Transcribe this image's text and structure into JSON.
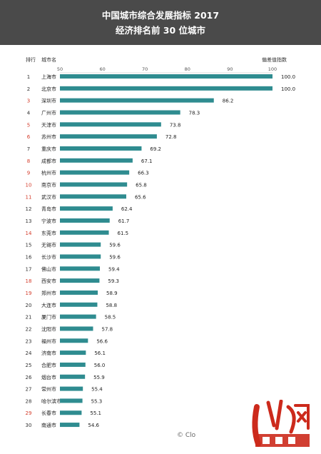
{
  "header": {
    "title_line1": "中国城市综合发展指标 2017",
    "title_line2": "经济排名前 30 位城市"
  },
  "columns": {
    "rank": "排行",
    "city": "城市名",
    "index": "偏差值指数"
  },
  "footer": {
    "copyright": "© Clo"
  },
  "colors": {
    "bar": "#2f8c90",
    "header_bg": "#4a4a4a",
    "rank_red": "#d43b2a",
    "rank_black": "#333333"
  },
  "chart_data": {
    "type": "bar",
    "orientation": "horizontal",
    "title": "中国城市综合发展指标 2017 经济排名前 30 位城市",
    "xlabel": "偏差值指数",
    "ylabel": "城市名",
    "xlim": [
      50,
      100
    ],
    "xticks": [
      50,
      60,
      70,
      80,
      90,
      100
    ],
    "grid": false,
    "ranks": [
      1,
      2,
      3,
      4,
      5,
      6,
      7,
      8,
      9,
      10,
      11,
      12,
      13,
      14,
      15,
      16,
      17,
      18,
      19,
      20,
      21,
      22,
      23,
      24,
      25,
      26,
      27,
      28,
      29,
      30
    ],
    "rank_colors": [
      "black",
      "black",
      "red",
      "black",
      "red",
      "red",
      "black",
      "red",
      "red",
      "red",
      "red",
      "black",
      "black",
      "red",
      "black",
      "black",
      "black",
      "red",
      "red",
      "black",
      "black",
      "black",
      "black",
      "black",
      "black",
      "black",
      "black",
      "black",
      "red",
      "black"
    ],
    "categories": [
      "上海市",
      "北京市",
      "深圳市",
      "广州市",
      "天津市",
      "苏州市",
      "重庆市",
      "成都市",
      "杭州市",
      "南京市",
      "武汉市",
      "青岛市",
      "宁波市",
      "东莞市",
      "无锡市",
      "长沙市",
      "佛山市",
      "西安市",
      "郑州市",
      "大连市",
      "厦门市",
      "沈阳市",
      "福州市",
      "济南市",
      "合肥市",
      "烟台市",
      "常州市",
      "哈尔滨市",
      "长春市",
      "南通市"
    ],
    "values": [
      100.0,
      100.0,
      86.2,
      78.3,
      73.8,
      72.8,
      69.2,
      67.1,
      66.3,
      65.8,
      65.6,
      62.4,
      61.7,
      61.5,
      59.6,
      59.6,
      59.4,
      59.3,
      58.9,
      58.8,
      58.5,
      57.8,
      56.6,
      56.1,
      56.0,
      55.9,
      55.4,
      55.3,
      55.1,
      54.6
    ],
    "value_labels": [
      "100.0",
      "100.0",
      "86.2",
      "78.3",
      "73.8",
      "72.8",
      "69.2",
      "67.1",
      "66.3",
      "65.8",
      "65.6",
      "62.4",
      "61.7",
      "61.5",
      "59.6",
      "59.6",
      "59.4",
      "59.3",
      "58.9",
      "58.8",
      "58.5",
      "57.8",
      "56.6",
      "56.1",
      "56.0",
      "55.9",
      "55.4",
      "55.3",
      "55.1",
      "54.6"
    ]
  }
}
